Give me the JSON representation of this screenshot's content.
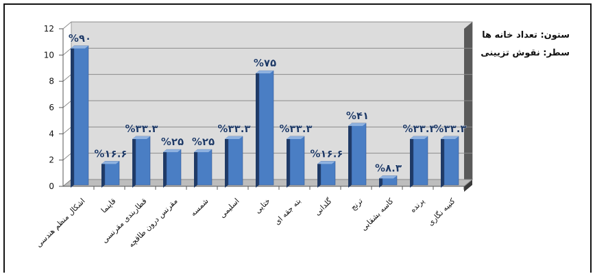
{
  "chart_data": {
    "type": "bar",
    "title": "",
    "xlabel": "",
    "ylabel": "",
    "ylim": [
      0,
      12
    ],
    "yticks": [
      0,
      2,
      4,
      6,
      8,
      10,
      12
    ],
    "grid": true,
    "legend_placement": "right",
    "categories": [
      "اشکال منظم هندسی",
      "قاپنما",
      "قطاربندی مقرنسی",
      "مقرنس درون طاقچه",
      "شمسه",
      "اسلیمی",
      "ختایی",
      "بته جقه ای",
      "گلدانی",
      "ترنج",
      "کاسه بشقابی",
      "پرنده",
      "کتیبه نگاری"
    ],
    "values": [
      10.5,
      1.7,
      3.6,
      2.6,
      2.6,
      3.6,
      8.6,
      3.6,
      1.7,
      4.6,
      0.6,
      3.6,
      3.6
    ],
    "data_labels": [
      "%۹۰",
      "%۱۶.۶",
      "%۳۳.۳",
      "%۲۵",
      "%۲۵",
      "%۳۳.۳",
      "%۷۵",
      "%۳۳.۳",
      "%۱۶.۶",
      "%۴۱",
      "%۸.۳",
      "%۳۳.۳",
      "%۳۳.۳"
    ],
    "colors": {
      "bar_front": "#4a7ec4",
      "bar_side": "#1f3a66",
      "bar_top": "#8fb2e0",
      "wall": "#dcdcdc",
      "floor": "#bdbdbd",
      "side_wall": "#5a5a5a",
      "label": "#1f3a66"
    }
  },
  "legend": {
    "line1": "ستون: تعداد خانه ها",
    "line2": "سطر: نقوش تزیینی"
  }
}
